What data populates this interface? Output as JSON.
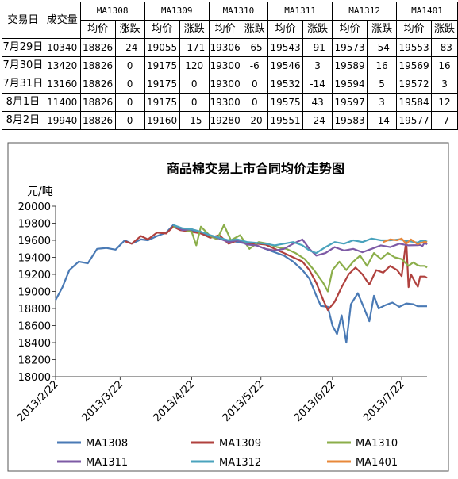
{
  "table": {
    "head_date": "交易日",
    "head_volume": "成交量",
    "contracts": [
      "MA1308",
      "MA1309",
      "MA1310",
      "MA1311",
      "MA1312",
      "MA1401"
    ],
    "sub_price": "均价",
    "sub_change": "涨跌",
    "rows": [
      {
        "date": "7月29日",
        "volume": "10340",
        "cells": [
          "18826",
          "-24",
          "19055",
          "-171",
          "19306",
          "-65",
          "19543",
          "-91",
          "19573",
          "-54",
          "19553",
          "-83"
        ]
      },
      {
        "date": "7月30日",
        "volume": "13420",
        "cells": [
          "18826",
          "0",
          "19175",
          "120",
          "19300",
          "-6",
          "19546",
          "3",
          "19589",
          "16",
          "19569",
          "16"
        ]
      },
      {
        "date": "7月31日",
        "volume": "13160",
        "cells": [
          "18826",
          "0",
          "19175",
          "0",
          "19300",
          "0",
          "19532",
          "-14",
          "19594",
          "5",
          "19572",
          "3"
        ]
      },
      {
        "date": "8月1日",
        "volume": "11400",
        "cells": [
          "18826",
          "0",
          "19175",
          "0",
          "19300",
          "0",
          "19575",
          "43",
          "19597",
          "3",
          "19584",
          "12"
        ]
      },
      {
        "date": "8月2日",
        "volume": "19940",
        "cells": [
          "18826",
          "0",
          "19160",
          "-15",
          "19280",
          "-20",
          "19551",
          "-24",
          "19583",
          "-14",
          "19577",
          "-7"
        ]
      }
    ]
  },
  "chart_data": {
    "type": "line",
    "title": "商品棉交易上市合同均价走势图",
    "ylabel": "元/吨",
    "ylim": [
      18000,
      20000
    ],
    "yticks": [
      "18000",
      "18200",
      "18400",
      "18600",
      "18800",
      "19000",
      "19200",
      "19400",
      "19600",
      "19800",
      "20000"
    ],
    "xlim": [
      "2013/2/22",
      "2013/8/2"
    ],
    "xticks": [
      "2013/2/22",
      "2013/3/22",
      "2013/4/22",
      "2013/5/22",
      "2013/6/22",
      "2013/7/22"
    ],
    "legend_position": "bottom",
    "colors": {
      "MA1308": "#4a7ab5",
      "MA1309": "#b0413e",
      "MA1310": "#8bae4a",
      "MA1311": "#7d5aa5",
      "MA1312": "#4aa3bd",
      "MA1401": "#e8883a"
    },
    "series": [
      {
        "name": "MA1308",
        "points": [
          [
            "2013/2/22",
            18900
          ],
          [
            "2013/2/25",
            19050
          ],
          [
            "2013/2/28",
            19250
          ],
          [
            "2013/3/4",
            19350
          ],
          [
            "2013/3/8",
            19330
          ],
          [
            "2013/3/12",
            19500
          ],
          [
            "2013/3/16",
            19510
          ],
          [
            "2013/3/20",
            19490
          ],
          [
            "2013/3/24",
            19600
          ],
          [
            "2013/3/27",
            19560
          ],
          [
            "2013/3/31",
            19610
          ],
          [
            "2013/4/3",
            19600
          ],
          [
            "2013/4/7",
            19650
          ],
          [
            "2013/4/11",
            19690
          ],
          [
            "2013/4/14",
            19780
          ],
          [
            "2013/4/17",
            19740
          ],
          [
            "2013/4/22",
            19720
          ],
          [
            "2013/4/26",
            19680
          ],
          [
            "2013/4/30",
            19650
          ],
          [
            "2013/5/4",
            19620
          ],
          [
            "2013/5/8",
            19600
          ],
          [
            "2013/5/12",
            19580
          ],
          [
            "2013/5/16",
            19560
          ],
          [
            "2013/5/20",
            19540
          ],
          [
            "2013/5/24",
            19500
          ],
          [
            "2013/5/28",
            19460
          ],
          [
            "2013/6/1",
            19420
          ],
          [
            "2013/6/5",
            19350
          ],
          [
            "2013/6/9",
            19250
          ],
          [
            "2013/6/12",
            19150
          ],
          [
            "2013/6/15",
            18950
          ],
          [
            "2013/6/17",
            18830
          ],
          [
            "2013/6/20",
            18820
          ],
          [
            "2013/6/22",
            18600
          ],
          [
            "2013/6/24",
            18500
          ],
          [
            "2013/6/26",
            18720
          ],
          [
            "2013/6/28",
            18400
          ],
          [
            "2013/6/30",
            18850
          ],
          [
            "2013/7/3",
            18980
          ],
          [
            "2013/7/5",
            18850
          ],
          [
            "2013/7/8",
            18650
          ],
          [
            "2013/7/10",
            18950
          ],
          [
            "2013/7/12",
            18800
          ],
          [
            "2013/7/15",
            18840
          ],
          [
            "2013/7/18",
            18870
          ],
          [
            "2013/7/21",
            18820
          ],
          [
            "2013/7/24",
            18860
          ],
          [
            "2013/7/27",
            18850
          ],
          [
            "2013/7/29",
            18826
          ],
          [
            "2013/8/2",
            18826
          ]
        ]
      },
      {
        "name": "MA1309",
        "points": [
          [
            "2013/3/24",
            19590
          ],
          [
            "2013/3/27",
            19560
          ],
          [
            "2013/3/31",
            19650
          ],
          [
            "2013/4/3",
            19610
          ],
          [
            "2013/4/7",
            19690
          ],
          [
            "2013/4/11",
            19680
          ],
          [
            "2013/4/14",
            19760
          ],
          [
            "2013/4/17",
            19720
          ],
          [
            "2013/4/22",
            19700
          ],
          [
            "2013/4/26",
            19680
          ],
          [
            "2013/4/30",
            19630
          ],
          [
            "2013/5/4",
            19660
          ],
          [
            "2013/5/8",
            19560
          ],
          [
            "2013/5/12",
            19600
          ],
          [
            "2013/5/16",
            19570
          ],
          [
            "2013/5/20",
            19560
          ],
          [
            "2013/5/24",
            19550
          ],
          [
            "2013/5/28",
            19500
          ],
          [
            "2013/6/1",
            19450
          ],
          [
            "2013/6/5",
            19400
          ],
          [
            "2013/6/9",
            19350
          ],
          [
            "2013/6/12",
            19250
          ],
          [
            "2013/6/15",
            19100
          ],
          [
            "2013/6/18",
            18900
          ],
          [
            "2013/6/20",
            18780
          ],
          [
            "2013/6/23",
            18880
          ],
          [
            "2013/6/26",
            19050
          ],
          [
            "2013/6/29",
            19200
          ],
          [
            "2013/7/2",
            19280
          ],
          [
            "2013/7/5",
            19200
          ],
          [
            "2013/7/8",
            19080
          ],
          [
            "2013/7/11",
            19250
          ],
          [
            "2013/7/14",
            19220
          ],
          [
            "2013/7/17",
            19300
          ],
          [
            "2013/7/20",
            19250
          ],
          [
            "2013/7/22",
            19180
          ],
          [
            "2013/7/24",
            19600
          ],
          [
            "2013/7/25",
            19050
          ],
          [
            "2013/7/26",
            19200
          ],
          [
            "2013/7/28",
            19100
          ],
          [
            "2013/7/29",
            19055
          ],
          [
            "2013/7/30",
            19175
          ],
          [
            "2013/8/1",
            19175
          ],
          [
            "2013/8/2",
            19160
          ]
        ]
      },
      {
        "name": "MA1310",
        "points": [
          [
            "2013/4/14",
            19760
          ],
          [
            "2013/4/17",
            19740
          ],
          [
            "2013/4/22",
            19700
          ],
          [
            "2013/4/24",
            19540
          ],
          [
            "2013/4/26",
            19760
          ],
          [
            "2013/4/30",
            19650
          ],
          [
            "2013/5/3",
            19610
          ],
          [
            "2013/5/6",
            19780
          ],
          [
            "2013/5/9",
            19600
          ],
          [
            "2013/5/13",
            19660
          ],
          [
            "2013/5/17",
            19500
          ],
          [
            "2013/5/21",
            19580
          ],
          [
            "2013/5/25",
            19560
          ],
          [
            "2013/5/29",
            19520
          ],
          [
            "2013/6/2",
            19500
          ],
          [
            "2013/6/6",
            19450
          ],
          [
            "2013/6/10",
            19380
          ],
          [
            "2013/6/14",
            19250
          ],
          [
            "2013/6/18",
            19100
          ],
          [
            "2013/6/20",
            19000
          ],
          [
            "2013/6/22",
            19250
          ],
          [
            "2013/6/25",
            19350
          ],
          [
            "2013/6/28",
            19250
          ],
          [
            "2013/7/1",
            19350
          ],
          [
            "2013/7/4",
            19420
          ],
          [
            "2013/7/7",
            19300
          ],
          [
            "2013/7/10",
            19450
          ],
          [
            "2013/7/13",
            19380
          ],
          [
            "2013/7/16",
            19450
          ],
          [
            "2013/7/19",
            19400
          ],
          [
            "2013/7/22",
            19380
          ],
          [
            "2013/7/25",
            19300
          ],
          [
            "2013/7/27",
            19340
          ],
          [
            "2013/7/29",
            19306
          ],
          [
            "2013/7/30",
            19300
          ],
          [
            "2013/8/1",
            19300
          ],
          [
            "2013/8/2",
            19280
          ]
        ]
      },
      {
        "name": "MA1311",
        "points": [
          [
            "2013/4/14",
            19780
          ],
          [
            "2013/4/18",
            19720
          ],
          [
            "2013/4/22",
            19730
          ],
          [
            "2013/4/26",
            19700
          ],
          [
            "2013/4/30",
            19660
          ],
          [
            "2013/5/4",
            19620
          ],
          [
            "2013/5/8",
            19580
          ],
          [
            "2013/5/12",
            19600
          ],
          [
            "2013/5/16",
            19550
          ],
          [
            "2013/5/20",
            19540
          ],
          [
            "2013/5/24",
            19500
          ],
          [
            "2013/5/28",
            19480
          ],
          [
            "2013/6/1",
            19500
          ],
          [
            "2013/6/5",
            19560
          ],
          [
            "2013/6/9",
            19610
          ],
          [
            "2013/6/12",
            19500
          ],
          [
            "2013/6/15",
            19420
          ],
          [
            "2013/6/19",
            19450
          ],
          [
            "2013/6/23",
            19520
          ],
          [
            "2013/6/27",
            19480
          ],
          [
            "2013/7/1",
            19500
          ],
          [
            "2013/7/5",
            19460
          ],
          [
            "2013/7/9",
            19500
          ],
          [
            "2013/7/13",
            19540
          ],
          [
            "2013/7/17",
            19520
          ],
          [
            "2013/7/21",
            19560
          ],
          [
            "2013/7/25",
            19540
          ],
          [
            "2013/7/29",
            19543
          ],
          [
            "2013/7/30",
            19546
          ],
          [
            "2013/7/31",
            19532
          ],
          [
            "2013/8/1",
            19575
          ],
          [
            "2013/8/2",
            19551
          ]
        ]
      },
      {
        "name": "MA1312",
        "points": [
          [
            "2013/4/14",
            19780
          ],
          [
            "2013/4/18",
            19740
          ],
          [
            "2013/4/22",
            19730
          ],
          [
            "2013/4/26",
            19700
          ],
          [
            "2013/4/30",
            19660
          ],
          [
            "2013/5/4",
            19630
          ],
          [
            "2013/5/8",
            19600
          ],
          [
            "2013/5/12",
            19610
          ],
          [
            "2013/5/16",
            19580
          ],
          [
            "2013/5/20",
            19570
          ],
          [
            "2013/5/24",
            19560
          ],
          [
            "2013/5/28",
            19540
          ],
          [
            "2013/6/1",
            19560
          ],
          [
            "2013/6/5",
            19580
          ],
          [
            "2013/6/9",
            19540
          ],
          [
            "2013/6/12",
            19480
          ],
          [
            "2013/6/15",
            19450
          ],
          [
            "2013/6/19",
            19520
          ],
          [
            "2013/6/23",
            19580
          ],
          [
            "2013/6/27",
            19560
          ],
          [
            "2013/7/1",
            19600
          ],
          [
            "2013/7/5",
            19580
          ],
          [
            "2013/7/9",
            19620
          ],
          [
            "2013/7/13",
            19600
          ],
          [
            "2013/7/17",
            19600
          ],
          [
            "2013/7/21",
            19610
          ],
          [
            "2013/7/25",
            19590
          ],
          [
            "2013/7/29",
            19573
          ],
          [
            "2013/7/30",
            19589
          ],
          [
            "2013/7/31",
            19594
          ],
          [
            "2013/8/1",
            19597
          ],
          [
            "2013/8/2",
            19583
          ]
        ]
      },
      {
        "name": "MA1401",
        "points": [
          [
            "2013/7/14",
            19580
          ],
          [
            "2013/7/17",
            19610
          ],
          [
            "2013/7/20",
            19600
          ],
          [
            "2013/7/22",
            19620
          ],
          [
            "2013/7/24",
            19560
          ],
          [
            "2013/7/26",
            19610
          ],
          [
            "2013/7/29",
            19553
          ],
          [
            "2013/7/30",
            19569
          ],
          [
            "2013/7/31",
            19572
          ],
          [
            "2013/8/1",
            19584
          ],
          [
            "2013/8/2",
            19577
          ]
        ]
      }
    ]
  }
}
